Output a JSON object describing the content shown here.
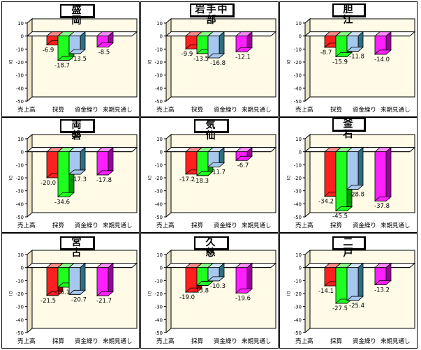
{
  "colors": {
    "plot_bg": "#fffbe7",
    "series": [
      "#ff1f1f",
      "#1fff1f",
      "#a6c8ee",
      "#ff1fff"
    ],
    "series_side": [
      "#9c0000",
      "#009c00",
      "#2f6f80",
      "#9c009c"
    ],
    "series_top": [
      "#ff8c8c",
      "#8cff8c",
      "#d0e4f8",
      "#ff8cff"
    ]
  },
  "chart_data": [
    {
      "type": "bar",
      "title": "盛　岡",
      "categories": [
        "売上高",
        "採算",
        "資金繰り",
        "来期見通し"
      ],
      "values": [
        -6.9,
        -18.7,
        -13.5,
        -8.5
      ],
      "value_labels": [
        "-6.9",
        "-18.7",
        "-13.5",
        "-8.5"
      ],
      "ylabel": "DI",
      "yticks": [
        "10",
        "0",
        "-10",
        "-20",
        "-30",
        "-40",
        "-50"
      ],
      "ylim": [
        -50,
        10
      ]
    },
    {
      "type": "bar",
      "title": "岩手中部",
      "categories": [
        "売上高",
        "採算",
        "資金繰り",
        "来期見通し"
      ],
      "values": [
        -9.9,
        -13.5,
        -16.8,
        -12.1
      ],
      "value_labels": [
        "-9.9",
        "-13.5",
        "-16.8",
        "-12.1"
      ],
      "ylabel": "DI",
      "yticks": [
        "10",
        "0",
        "-10",
        "-20",
        "-30",
        "-40",
        "-50"
      ],
      "ylim": [
        -50,
        10
      ]
    },
    {
      "type": "bar",
      "title": "胆　江",
      "categories": [
        "売上高",
        "採算",
        "資金繰り",
        "来期見通し"
      ],
      "values": [
        -8.7,
        -15.9,
        -11.8,
        -14.0
      ],
      "value_labels": [
        "-8.7",
        "-15.9",
        "-11.8",
        "-14.0"
      ],
      "ylabel": "DI",
      "yticks": [
        "10",
        "0",
        "-10",
        "-20",
        "-30",
        "-40",
        "-50"
      ],
      "ylim": [
        -50,
        10
      ]
    },
    {
      "type": "bar",
      "title": "両　磐",
      "categories": [
        "売上高",
        "採算",
        "資金繰り",
        "来期見通し"
      ],
      "values": [
        -20.0,
        -34.6,
        -17.3,
        -17.8
      ],
      "value_labels": [
        "-20.0",
        "-34.6",
        "-17.3",
        "-17.8"
      ],
      "ylabel": "DI",
      "yticks": [
        "10",
        "0",
        "-10",
        "-20",
        "-30",
        "-40",
        "-50"
      ],
      "ylim": [
        -50,
        10
      ]
    },
    {
      "type": "bar",
      "title": "気　仙",
      "categories": [
        "売上高",
        "採算",
        "資金繰り",
        "来期見通し"
      ],
      "values": [
        -17.2,
        -18.3,
        -11.7,
        -6.7
      ],
      "value_labels": [
        "-17.2",
        "-18.3",
        "-11.7",
        "-6.7"
      ],
      "ylabel": "DI",
      "yticks": [
        "10",
        "0",
        "-10",
        "-20",
        "-30",
        "-40",
        "-50"
      ],
      "ylim": [
        -50,
        10
      ]
    },
    {
      "type": "bar",
      "title": "釜　石",
      "categories": [
        "売上高",
        "採算",
        "資金繰り",
        "来期見通し"
      ],
      "values": [
        -34.2,
        -45.5,
        -28.8,
        -37.8
      ],
      "value_labels": [
        "-34.2",
        "-45.5",
        "-28.8",
        "-37.8"
      ],
      "ylabel": "DI",
      "yticks": [
        "10",
        "0",
        "-10",
        "-20",
        "-30",
        "-40",
        "-50"
      ],
      "ylim": [
        -50,
        10
      ]
    },
    {
      "type": "bar",
      "title": "宮　古",
      "categories": [
        "売上高",
        "採算",
        "資金繰り",
        "来期見通し"
      ],
      "values": [
        -21.5,
        -15.1,
        -20.7,
        -21.7
      ],
      "value_labels": [
        "-21.5",
        "-15.1",
        "-20.7",
        "-21.7"
      ],
      "ylabel": "DI",
      "yticks": [
        "10",
        "0",
        "-10",
        "-20",
        "-30",
        "-40",
        "-50"
      ],
      "ylim": [
        -50,
        10
      ]
    },
    {
      "type": "bar",
      "title": "久　慈",
      "categories": [
        "売上高",
        "採算",
        "資金繰り",
        "来期見通し"
      ],
      "values": [
        -19.0,
        -13.8,
        -10.3,
        -19.6
      ],
      "value_labels": [
        "-19.0",
        "-13.8",
        "-10.3",
        "-19.6"
      ],
      "ylabel": "DI",
      "yticks": [
        "10",
        "0",
        "-10",
        "-20",
        "-30",
        "-40",
        "-50"
      ],
      "ylim": [
        -50,
        10
      ]
    },
    {
      "type": "bar",
      "title": "二　戸",
      "categories": [
        "売上高",
        "採算",
        "資金繰り",
        "来期見通し"
      ],
      "values": [
        -14.1,
        -27.5,
        -25.4,
        -13.2
      ],
      "value_labels": [
        "-14.1",
        "-27.5",
        "-25.4",
        "-13.2"
      ],
      "ylabel": "DI",
      "yticks": [
        "10",
        "0",
        "-10",
        "-20",
        "-30",
        "-40",
        "-50"
      ],
      "ylim": [
        -50,
        10
      ]
    }
  ]
}
